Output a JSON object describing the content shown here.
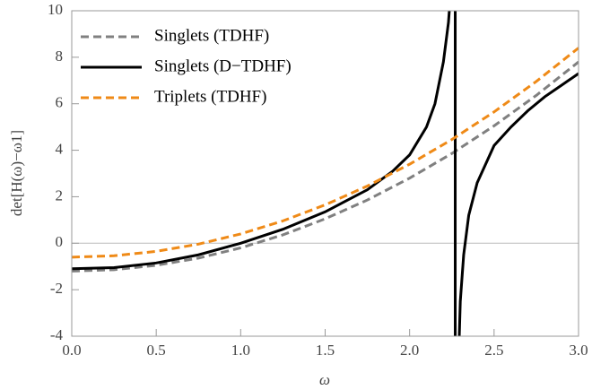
{
  "chart_data": {
    "type": "line",
    "xlabel": "ω",
    "ylabel": "det[H(ω)−ω1]",
    "xlim": [
      0,
      3.0
    ],
    "ylim": [
      -4,
      10
    ],
    "xticks": [
      {
        "value": 0,
        "label": "0.0"
      },
      {
        "value": 0.5,
        "label": "0.5"
      },
      {
        "value": 1.0,
        "label": "1.0"
      },
      {
        "value": 1.5,
        "label": "1.5"
      },
      {
        "value": 2.0,
        "label": "2.0"
      },
      {
        "value": 2.5,
        "label": "2.5"
      },
      {
        "value": 3.0,
        "label": "3.0"
      }
    ],
    "yticks": [
      -4,
      -2,
      0,
      2,
      4,
      6,
      8,
      10
    ],
    "legend": "top-left",
    "series": [
      {
        "name": "Singlets (TDHF)",
        "color": "#808080",
        "style": "dashed",
        "x": [
          0,
          0.25,
          0.5,
          0.75,
          1.0,
          1.25,
          1.5,
          1.75,
          2.0,
          2.25,
          2.5,
          2.75,
          3.0
        ],
        "values": [
          -1.2,
          -1.14,
          -0.95,
          -0.64,
          -0.2,
          0.36,
          1.05,
          1.86,
          2.8,
          3.86,
          5.05,
          6.36,
          7.8
        ]
      },
      {
        "name": "Singlets (D−TDHF)",
        "color": "#000000",
        "style": "solid",
        "x": [
          0,
          0.25,
          0.5,
          0.75,
          1.0,
          1.25,
          1.5,
          1.75,
          1.9,
          2.0,
          2.1,
          2.15,
          2.2,
          2.23,
          2.245,
          2.27,
          2.27,
          2.29,
          2.3,
          2.32,
          2.35,
          2.4,
          2.5,
          2.6,
          2.7,
          2.8,
          2.9,
          3.0
        ],
        "values": [
          -1.1,
          -1.05,
          -0.85,
          -0.5,
          0.0,
          0.6,
          1.35,
          2.3,
          3.1,
          3.8,
          5.0,
          6.0,
          7.8,
          9.5,
          11,
          11,
          -5,
          -5,
          -2.5,
          -0.5,
          1.2,
          2.6,
          4.2,
          5.0,
          5.7,
          6.3,
          6.8,
          7.3
        ]
      },
      {
        "name": "Triplets (TDHF)",
        "color": "#ef8a17",
        "style": "dashed",
        "x": [
          0,
          0.25,
          0.5,
          0.75,
          1.0,
          1.25,
          1.5,
          1.75,
          2.0,
          2.25,
          2.5,
          2.75,
          3.0
        ],
        "values": [
          -0.6,
          -0.54,
          -0.35,
          -0.04,
          0.4,
          0.96,
          1.65,
          2.46,
          3.4,
          4.46,
          5.65,
          6.96,
          8.4
        ]
      }
    ]
  }
}
